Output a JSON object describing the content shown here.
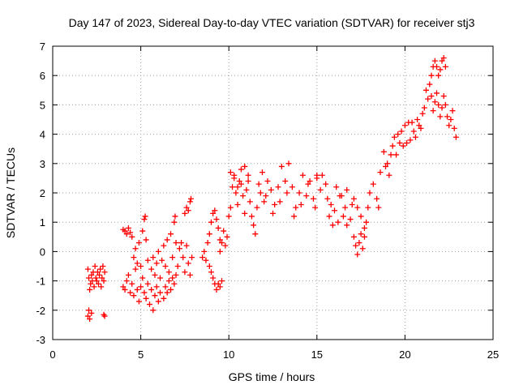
{
  "chart_data": {
    "type": "scatter",
    "title": "Day 147 of 2023, Sidereal Day-to-day VTEC variation (SDTVAR) for receiver stj3",
    "xlabel": "GPS time / hours",
    "ylabel": "SDTVAR / TECUs",
    "xlim": [
      0,
      25
    ],
    "ylim": [
      -3,
      7
    ],
    "xticks": [
      "0",
      "5",
      "10",
      "15",
      "20",
      "25"
    ],
    "yticks": [
      "-3",
      "-2",
      "-1",
      "0",
      "1",
      "2",
      "3",
      "4",
      "5",
      "6",
      "7"
    ],
    "grid": true,
    "marker": "+",
    "series": [
      {
        "name": "SDTVAR",
        "color": "#ff0000",
        "points": [
          [
            2.0,
            -0.6
          ],
          [
            2.05,
            -0.9
          ],
          [
            2.1,
            -1.3
          ],
          [
            2.15,
            -1.1
          ],
          [
            2.2,
            -0.8
          ],
          [
            2.25,
            -1.0
          ],
          [
            2.3,
            -0.7
          ],
          [
            2.35,
            -1.2
          ],
          [
            2.4,
            -0.5
          ],
          [
            2.45,
            -0.9
          ],
          [
            2.5,
            -1.0
          ],
          [
            2.55,
            -0.7
          ],
          [
            2.6,
            -1.1
          ],
          [
            2.65,
            -0.8
          ],
          [
            2.7,
            -0.6
          ],
          [
            2.75,
            -1.2
          ],
          [
            2.8,
            -0.9
          ],
          [
            2.85,
            -0.5
          ],
          [
            2.9,
            -1.0
          ],
          [
            2.95,
            -0.7
          ],
          [
            2.0,
            -2.2
          ],
          [
            2.05,
            -2.0
          ],
          [
            2.1,
            -2.3
          ],
          [
            2.2,
            -2.1
          ],
          [
            2.9,
            -2.15
          ],
          [
            2.95,
            -2.2
          ],
          [
            4.0,
            0.75
          ],
          [
            4.1,
            0.7
          ],
          [
            4.2,
            0.6
          ],
          [
            4.3,
            0.8
          ],
          [
            4.4,
            0.65
          ],
          [
            4.5,
            0.5
          ],
          [
            4.0,
            -1.2
          ],
          [
            4.1,
            -1.3
          ],
          [
            4.2,
            -1.0
          ],
          [
            4.3,
            -0.8
          ],
          [
            4.4,
            -1.4
          ],
          [
            4.5,
            -1.1
          ],
          [
            4.6,
            -1.5
          ],
          [
            4.7,
            -0.6
          ],
          [
            4.8,
            -1.3
          ],
          [
            4.9,
            -1.7
          ],
          [
            5.0,
            -1.2
          ],
          [
            5.1,
            -0.9
          ],
          [
            5.2,
            -1.4
          ],
          [
            5.3,
            -1.6
          ],
          [
            5.4,
            -1.1
          ],
          [
            5.5,
            -1.8
          ],
          [
            5.6,
            -1.3
          ],
          [
            5.7,
            -2.0
          ],
          [
            5.8,
            -1.5
          ],
          [
            5.9,
            -1.2
          ],
          [
            6.0,
            -1.7
          ],
          [
            6.1,
            -1.4
          ],
          [
            4.6,
            -0.2
          ],
          [
            4.7,
            0.1
          ],
          [
            4.8,
            -0.4
          ],
          [
            4.9,
            0.3
          ],
          [
            5.0,
            -0.5
          ],
          [
            5.1,
            0.7
          ],
          [
            5.2,
            1.1
          ],
          [
            5.25,
            1.2
          ],
          [
            5.3,
            0.4
          ],
          [
            5.4,
            -0.3
          ],
          [
            5.6,
            -0.6
          ],
          [
            5.7,
            -0.2
          ],
          [
            5.8,
            -0.8
          ],
          [
            5.9,
            -0.4
          ],
          [
            6.0,
            0.0
          ],
          [
            6.1,
            -0.9
          ],
          [
            6.2,
            -0.3
          ],
          [
            6.3,
            0.2
          ],
          [
            6.4,
            -0.5
          ],
          [
            6.5,
            0.4
          ],
          [
            6.6,
            -0.7
          ],
          [
            6.7,
            0.6
          ],
          [
            6.8,
            -0.2
          ],
          [
            6.9,
            1.0
          ],
          [
            6.95,
            1.2
          ],
          [
            7.0,
            0.3
          ],
          [
            6.3,
            -1.6
          ],
          [
            6.4,
            -1.2
          ],
          [
            6.5,
            -1.4
          ],
          [
            6.6,
            -1.0
          ],
          [
            6.7,
            -1.3
          ],
          [
            6.8,
            -0.9
          ],
          [
            6.9,
            -1.1
          ],
          [
            7.0,
            -0.8
          ],
          [
            7.1,
            -0.5
          ],
          [
            7.2,
            0.1
          ],
          [
            7.3,
            0.3
          ],
          [
            7.4,
            -0.2
          ],
          [
            7.5,
            -0.7
          ],
          [
            7.6,
            0.2
          ],
          [
            7.7,
            -0.4
          ],
          [
            7.8,
            -0.8
          ],
          [
            7.9,
            -0.2
          ],
          [
            7.5,
            1.3
          ],
          [
            7.6,
            1.5
          ],
          [
            7.7,
            1.4
          ],
          [
            7.8,
            1.7
          ],
          [
            7.85,
            1.8
          ],
          [
            8.5,
            -0.2
          ],
          [
            8.6,
            0.0
          ],
          [
            8.7,
            -0.3
          ],
          [
            8.8,
            0.3
          ],
          [
            8.9,
            0.6
          ],
          [
            9.0,
            1.0
          ],
          [
            9.1,
            1.3
          ],
          [
            9.2,
            1.4
          ],
          [
            9.3,
            1.1
          ],
          [
            9.4,
            0.8
          ],
          [
            9.5,
            0.4
          ],
          [
            8.9,
            -0.5
          ],
          [
            9.0,
            -0.7
          ],
          [
            9.1,
            -0.9
          ],
          [
            9.2,
            -1.1
          ],
          [
            9.3,
            -1.3
          ],
          [
            9.4,
            -1.1
          ],
          [
            9.5,
            -1.2
          ],
          [
            9.6,
            -1.0
          ],
          [
            9.5,
            0.0
          ],
          [
            9.6,
            0.3
          ],
          [
            9.7,
            0.7
          ],
          [
            9.8,
            0.2
          ],
          [
            9.9,
            0.5
          ],
          [
            10.0,
            1.2
          ],
          [
            10.1,
            1.5
          ],
          [
            10.2,
            2.2
          ],
          [
            10.3,
            2.6
          ],
          [
            10.4,
            2.0
          ],
          [
            10.5,
            1.6
          ],
          [
            10.6,
            2.4
          ],
          [
            10.7,
            2.8
          ],
          [
            10.8,
            1.9
          ],
          [
            10.9,
            1.3
          ],
          [
            11.0,
            2.1
          ],
          [
            11.1,
            2.6
          ],
          [
            11.2,
            1.7
          ],
          [
            11.3,
            1.2
          ],
          [
            11.4,
            0.9
          ],
          [
            11.5,
            0.6
          ],
          [
            11.6,
            1.5
          ],
          [
            11.7,
            2.3
          ],
          [
            11.8,
            2.0
          ],
          [
            11.9,
            2.7
          ],
          [
            10.1,
            2.7
          ],
          [
            10.3,
            2.5
          ],
          [
            10.5,
            2.2
          ],
          [
            10.7,
            2.3
          ],
          [
            10.9,
            2.9
          ],
          [
            11.1,
            2.4
          ],
          [
            12.0,
            1.7
          ],
          [
            12.2,
            2.4
          ],
          [
            12.4,
            2.1
          ],
          [
            12.6,
            1.6
          ],
          [
            12.8,
            2.2
          ],
          [
            13.0,
            2.9
          ],
          [
            13.2,
            2.4
          ],
          [
            13.4,
            3.0
          ],
          [
            13.6,
            2.2
          ],
          [
            13.8,
            1.5
          ],
          [
            14.0,
            2.0
          ],
          [
            14.2,
            2.6
          ],
          [
            14.4,
            1.9
          ],
          [
            14.6,
            2.4
          ],
          [
            14.8,
            1.8
          ],
          [
            15.0,
            2.5
          ],
          [
            12.1,
            1.9
          ],
          [
            12.5,
            1.3
          ],
          [
            12.9,
            1.7
          ],
          [
            13.3,
            2.0
          ],
          [
            13.7,
            1.2
          ],
          [
            14.1,
            1.6
          ],
          [
            14.5,
            2.3
          ],
          [
            14.9,
            1.5
          ],
          [
            15.0,
            2.6
          ],
          [
            15.2,
            2.1
          ],
          [
            15.3,
            2.6
          ],
          [
            15.5,
            2.3
          ],
          [
            15.6,
            1.8
          ],
          [
            15.7,
            1.2
          ],
          [
            15.8,
            1.6
          ],
          [
            15.9,
            0.9
          ],
          [
            16.0,
            1.4
          ],
          [
            16.2,
            1.0
          ],
          [
            16.3,
            1.9
          ],
          [
            16.5,
            1.2
          ],
          [
            16.6,
            1.5
          ],
          [
            16.7,
            0.9
          ],
          [
            16.9,
            1.1
          ],
          [
            17.0,
            1.6
          ],
          [
            16.1,
            2.2
          ],
          [
            16.4,
            1.9
          ],
          [
            16.7,
            2.1
          ],
          [
            17.1,
            1.8
          ],
          [
            17.3,
            1.5
          ],
          [
            17.5,
            1.2
          ],
          [
            17.7,
            0.8
          ],
          [
            17.8,
            1.0
          ],
          [
            17.9,
            1.5
          ],
          [
            17.1,
            0.5
          ],
          [
            17.2,
            0.2
          ],
          [
            17.3,
            -0.1
          ],
          [
            17.4,
            0.3
          ],
          [
            17.5,
            0.6
          ],
          [
            17.6,
            0.1
          ],
          [
            17.7,
            0.5
          ],
          [
            18.0,
            2.0
          ],
          [
            18.2,
            2.3
          ],
          [
            18.4,
            1.8
          ],
          [
            18.5,
            1.5
          ],
          [
            18.6,
            2.7
          ],
          [
            18.8,
            3.4
          ],
          [
            18.9,
            2.9
          ],
          [
            19.0,
            3.0
          ],
          [
            19.1,
            2.6
          ],
          [
            19.2,
            3.3
          ],
          [
            19.3,
            3.6
          ],
          [
            19.4,
            3.9
          ],
          [
            19.5,
            3.3
          ],
          [
            19.6,
            4.0
          ],
          [
            19.7,
            3.7
          ],
          [
            19.8,
            4.1
          ],
          [
            19.9,
            3.6
          ],
          [
            20.0,
            4.3
          ],
          [
            20.1,
            3.7
          ],
          [
            20.2,
            4.4
          ],
          [
            20.3,
            3.8
          ],
          [
            20.4,
            4.4
          ],
          [
            20.5,
            4.1
          ],
          [
            20.6,
            3.9
          ],
          [
            20.7,
            4.5
          ],
          [
            20.8,
            4.3
          ],
          [
            20.9,
            4.2
          ],
          [
            21.0,
            4.7
          ],
          [
            21.1,
            4.9
          ],
          [
            21.2,
            5.5
          ],
          [
            21.3,
            5.2
          ],
          [
            21.4,
            5.7
          ],
          [
            21.5,
            6.0
          ],
          [
            21.6,
            6.3
          ],
          [
            21.7,
            6.5
          ],
          [
            21.8,
            6.3
          ],
          [
            21.9,
            6.0
          ],
          [
            22.0,
            6.2
          ],
          [
            22.1,
            6.5
          ],
          [
            22.2,
            6.6
          ],
          [
            22.3,
            6.3
          ],
          [
            21.5,
            5.3
          ],
          [
            21.6,
            4.8
          ],
          [
            21.7,
            5.1
          ],
          [
            21.8,
            5.4
          ],
          [
            21.9,
            5.0
          ],
          [
            22.0,
            4.6
          ],
          [
            22.1,
            4.9
          ],
          [
            22.2,
            5.3
          ],
          [
            22.3,
            5.0
          ],
          [
            22.4,
            4.6
          ],
          [
            22.5,
            4.3
          ],
          [
            22.6,
            4.5
          ],
          [
            22.7,
            4.8
          ],
          [
            22.8,
            4.2
          ],
          [
            22.9,
            3.9
          ]
        ]
      }
    ]
  }
}
